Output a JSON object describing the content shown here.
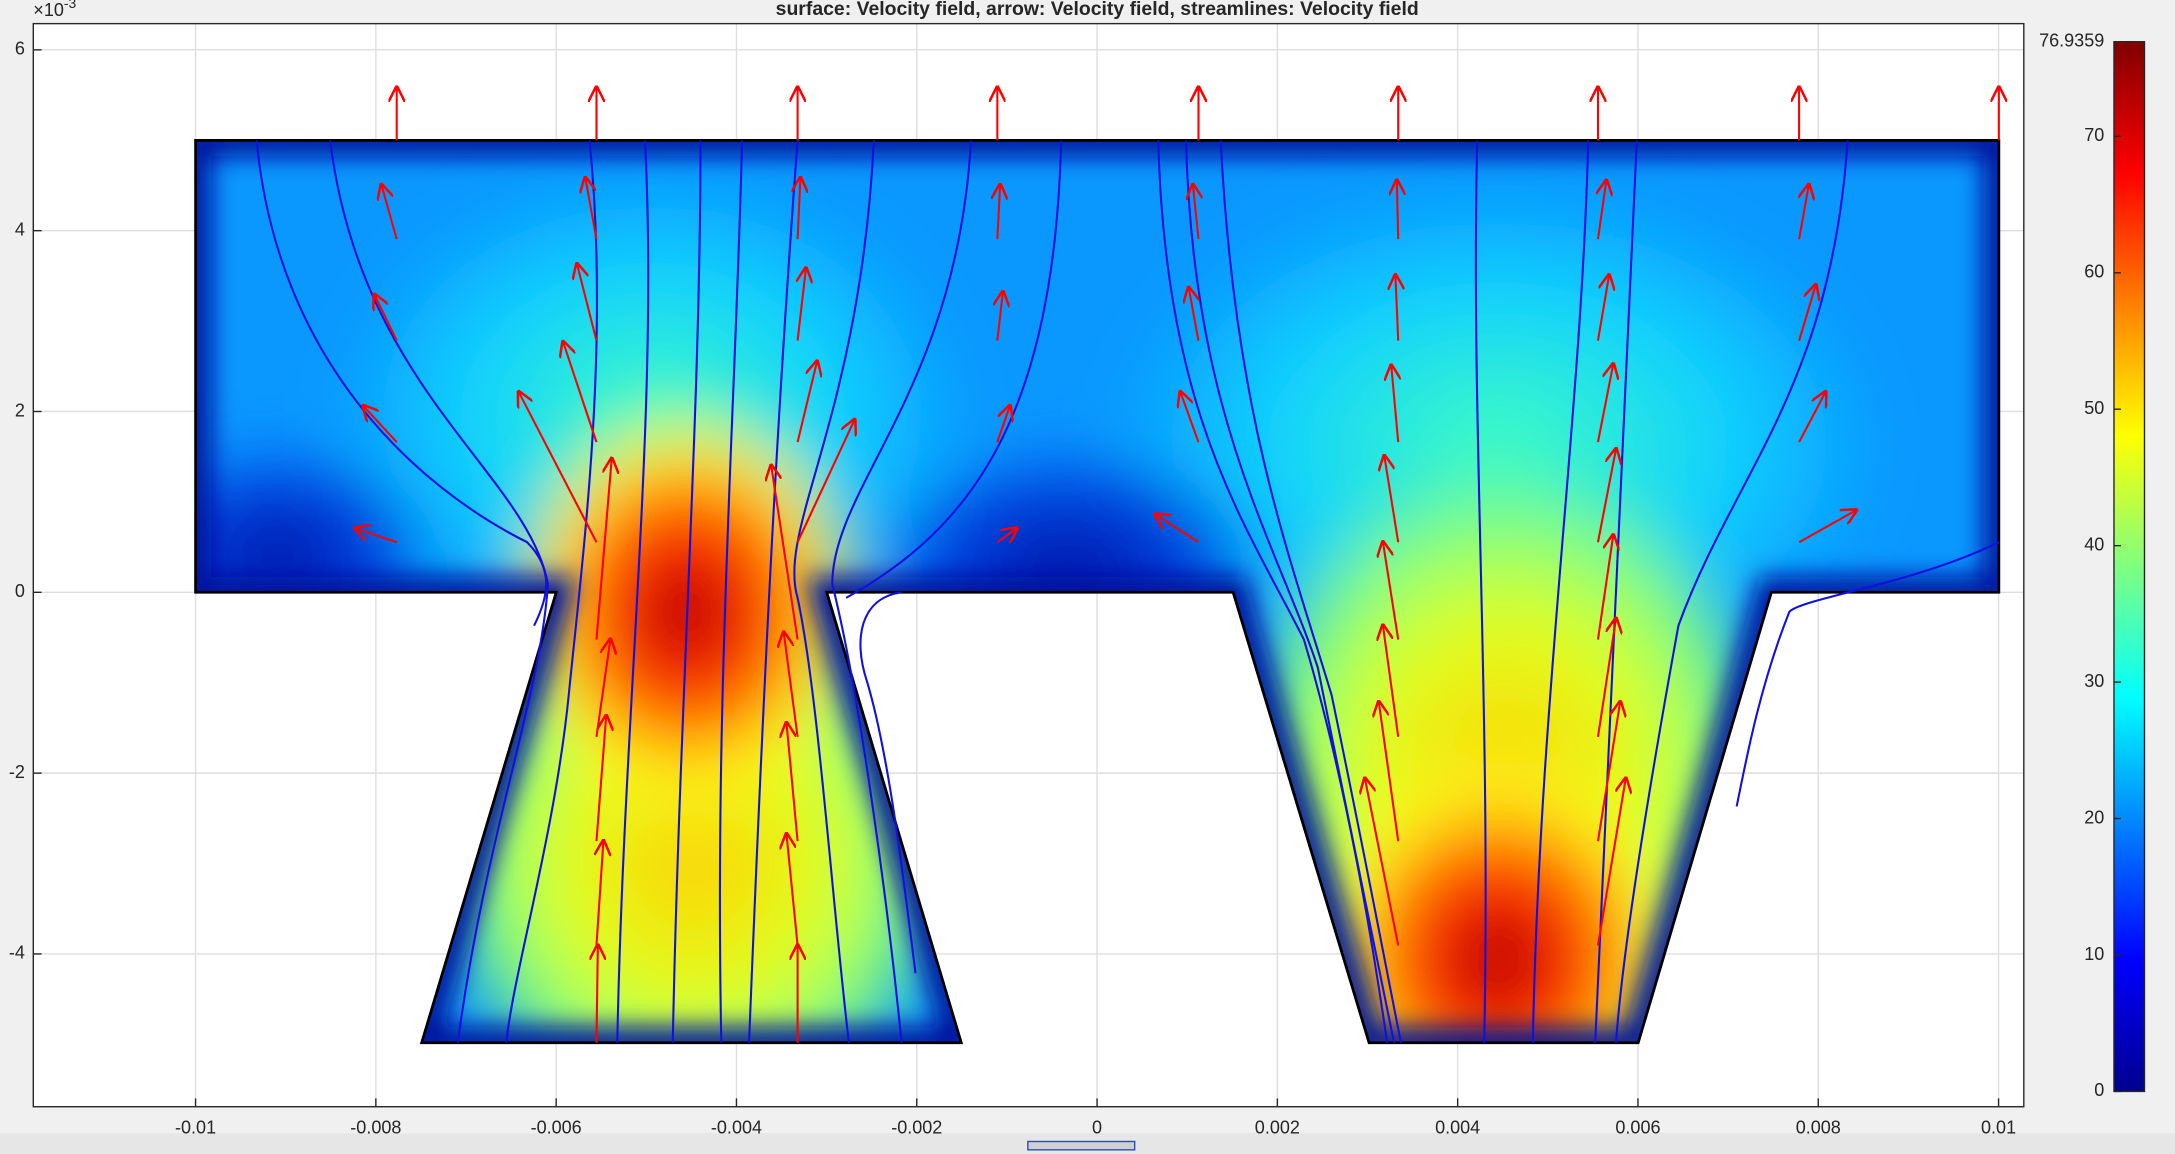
{
  "chart_data": {
    "type": "field",
    "title": "surface: Velocity field, arrow: Velocity field, streamlines: Velocity field",
    "y_scale_label": {
      "base": "×10",
      "exponent": "-3"
    },
    "xlim": [
      -0.0118,
      0.01028
    ],
    "xticks": [
      -0.01,
      -0.008,
      -0.006,
      -0.004,
      -0.002,
      0,
      0.002,
      0.004,
      0.006,
      0.008,
      0.01
    ],
    "ylim": [
      -5.69,
      6.29
    ],
    "yticks": [
      -4,
      -2,
      0,
      2,
      4,
      6
    ],
    "grid": true,
    "colormap": "jet",
    "clim": [
      0,
      76.9359
    ],
    "cticks": [
      0,
      10,
      20,
      30,
      40,
      50,
      60,
      70
    ]
  }
}
